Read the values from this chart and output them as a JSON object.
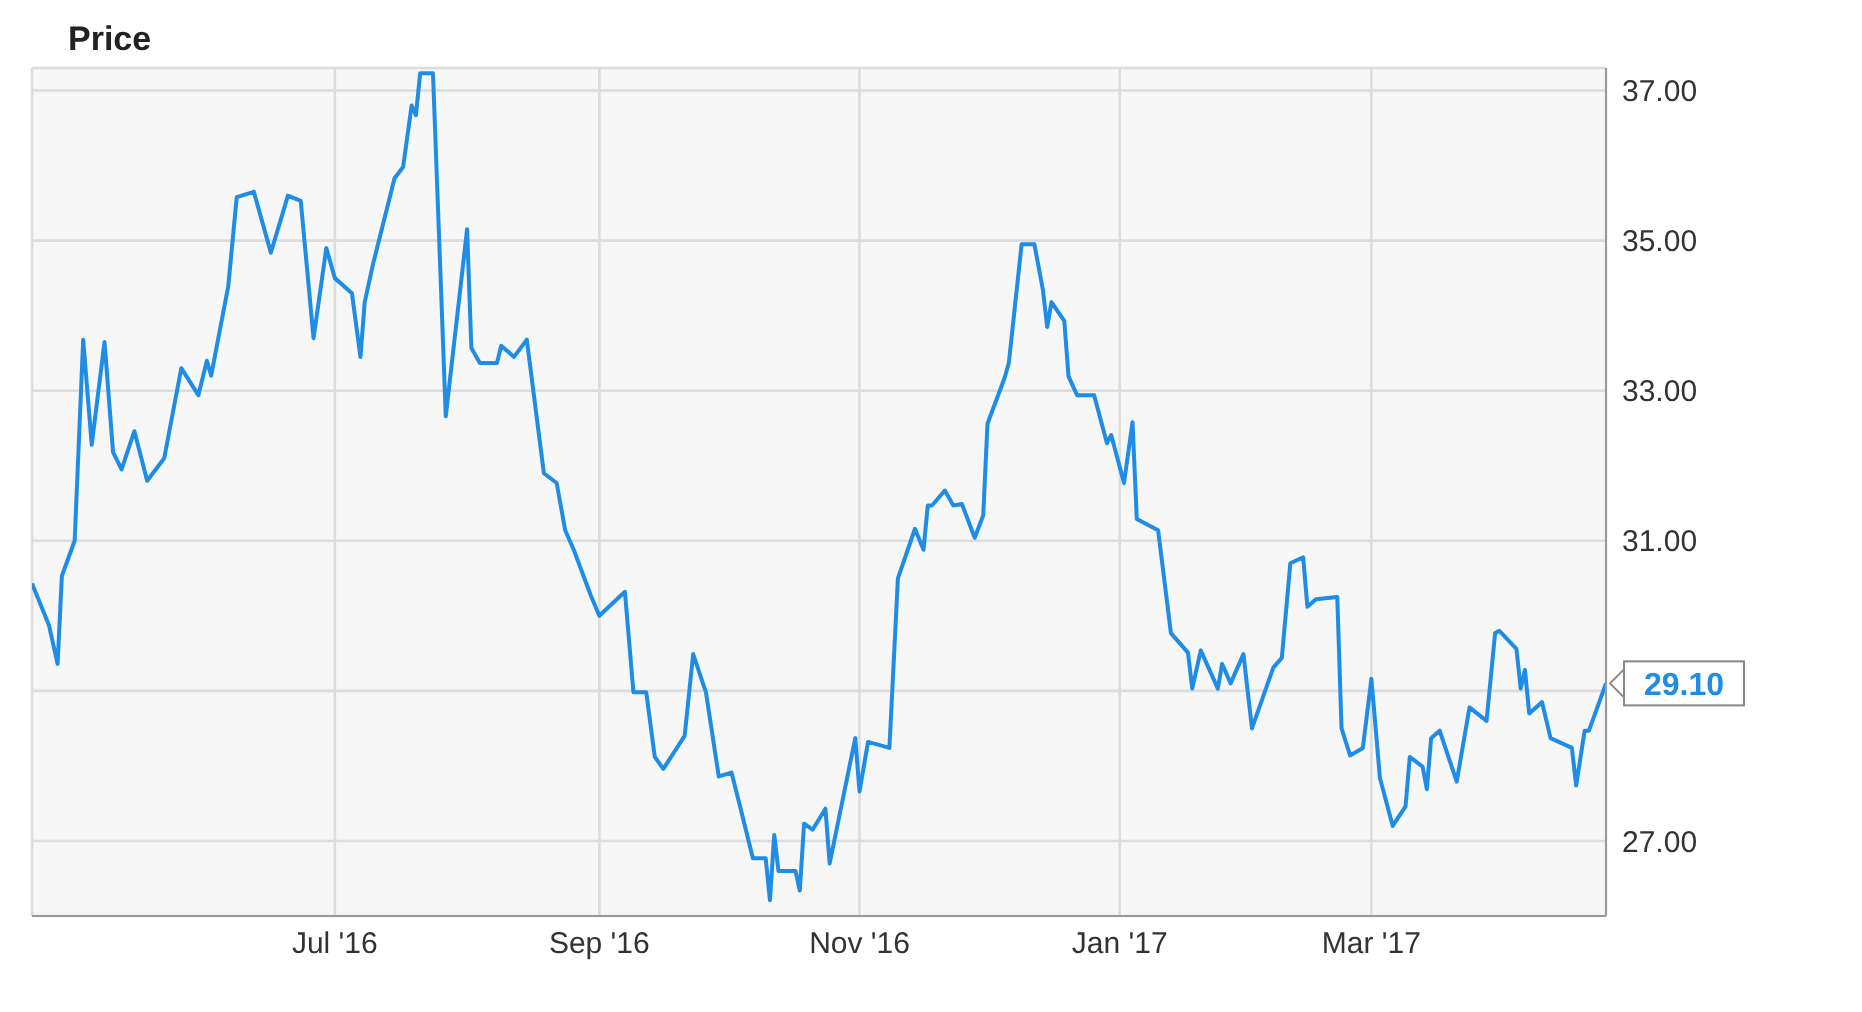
{
  "chart_data": {
    "type": "line",
    "title": "Price",
    "x": [
      "2016-04-21",
      "2016-04-25",
      "2016-04-27",
      "2016-04-28",
      "2016-05-01",
      "2016-05-03",
      "2016-05-05",
      "2016-05-08",
      "2016-05-10",
      "2016-05-12",
      "2016-05-15",
      "2016-05-18",
      "2016-05-22",
      "2016-05-26",
      "2016-05-30",
      "2016-06-01",
      "2016-06-02",
      "2016-06-06",
      "2016-06-08",
      "2016-06-12",
      "2016-06-16",
      "2016-06-20",
      "2016-06-23",
      "2016-06-26",
      "2016-06-29",
      "2016-07-01",
      "2016-07-05",
      "2016-07-07",
      "2016-07-08",
      "2016-07-10",
      "2016-07-15",
      "2016-07-17",
      "2016-07-19",
      "2016-07-20",
      "2016-07-21",
      "2016-07-24",
      "2016-07-27",
      "2016-08-01",
      "2016-08-02",
      "2016-08-04",
      "2016-08-08",
      "2016-08-09",
      "2016-08-12",
      "2016-08-15",
      "2016-08-19",
      "2016-08-22",
      "2016-08-24",
      "2016-08-26",
      "2016-08-30",
      "2016-09-01",
      "2016-09-07",
      "2016-09-09",
      "2016-09-12",
      "2016-09-14",
      "2016-09-16",
      "2016-09-21",
      "2016-09-23",
      "2016-09-26",
      "2016-09-29",
      "2016-10-02",
      "2016-10-04",
      "2016-10-07",
      "2016-10-10",
      "2016-10-11",
      "2016-10-12",
      "2016-10-13",
      "2016-10-17",
      "2016-10-18",
      "2016-10-19",
      "2016-10-21",
      "2016-10-24",
      "2016-10-25",
      "2016-10-31",
      "2016-11-01",
      "2016-11-03",
      "2016-11-08",
      "2016-11-10",
      "2016-11-14",
      "2016-11-16",
      "2016-11-17",
      "2016-11-18",
      "2016-11-21",
      "2016-11-23",
      "2016-11-25",
      "2016-11-28",
      "2016-11-30",
      "2016-12-01",
      "2016-12-05",
      "2016-12-06",
      "2016-12-09",
      "2016-12-12",
      "2016-12-14",
      "2016-12-15",
      "2016-12-16",
      "2016-12-19",
      "2016-12-20",
      "2016-12-22",
      "2016-12-26",
      "2016-12-29",
      "2016-12-30",
      "2017-01-02",
      "2017-01-04",
      "2017-01-05",
      "2017-01-10",
      "2017-01-13",
      "2017-01-17",
      "2017-01-18",
      "2017-01-20",
      "2017-01-24",
      "2017-01-25",
      "2017-01-27",
      "2017-01-30",
      "2017-02-01",
      "2017-02-06",
      "2017-02-08",
      "2017-02-10",
      "2017-02-13",
      "2017-02-14",
      "2017-02-16",
      "2017-02-21",
      "2017-02-22",
      "2017-02-24",
      "2017-02-27",
      "2017-03-01",
      "2017-03-03",
      "2017-03-06",
      "2017-03-09",
      "2017-03-10",
      "2017-03-13",
      "2017-03-14",
      "2017-03-15",
      "2017-03-17",
      "2017-03-21",
      "2017-03-24",
      "2017-03-28",
      "2017-03-30",
      "2017-03-31",
      "2017-04-04",
      "2017-04-05",
      "2017-04-06",
      "2017-04-07",
      "2017-04-10",
      "2017-04-12",
      "2017-04-17",
      "2017-04-18",
      "2017-04-20",
      "2017-04-21",
      "2017-04-25"
    ],
    "series": [
      {
        "color": "#1f8ce6",
        "values": [
          30.43,
          29.87,
          29.36,
          30.53,
          31.0,
          33.68,
          32.28,
          33.65,
          32.18,
          31.95,
          32.46,
          31.8,
          32.1,
          33.3,
          32.94,
          33.4,
          33.2,
          34.39,
          35.58,
          35.65,
          34.84,
          35.6,
          35.53,
          33.7,
          34.9,
          34.5,
          34.3,
          33.45,
          34.18,
          34.7,
          35.83,
          35.98,
          36.8,
          36.67,
          37.23,
          37.23,
          32.66,
          35.15,
          33.57,
          33.37,
          33.37,
          33.6,
          33.45,
          33.68,
          31.9,
          31.77,
          31.14,
          30.88,
          30.27,
          30.0,
          30.32,
          28.98,
          28.98,
          28.12,
          27.96,
          28.4,
          29.49,
          28.98,
          27.86,
          27.91,
          27.46,
          26.77,
          26.77,
          26.21,
          27.08,
          26.6,
          26.6,
          26.34,
          27.23,
          27.15,
          27.43,
          26.7,
          28.37,
          27.66,
          28.32,
          28.24,
          30.5,
          31.16,
          30.88,
          31.47,
          31.47,
          31.67,
          31.47,
          31.49,
          31.04,
          31.34,
          32.56,
          33.17,
          33.37,
          34.95,
          34.95,
          34.34,
          33.85,
          34.18,
          33.93,
          33.19,
          32.94,
          32.94,
          32.3,
          32.41,
          31.77,
          32.58,
          31.29,
          31.14,
          29.77,
          29.51,
          29.03,
          29.54,
          29.03,
          29.36,
          29.1,
          29.49,
          28.5,
          29.31,
          29.44,
          30.7,
          30.78,
          30.12,
          30.22,
          30.25,
          28.5,
          28.14,
          28.24,
          29.16,
          27.84,
          27.2,
          27.46,
          28.12,
          27.99,
          27.69,
          28.37,
          28.47,
          27.79,
          28.78,
          28.6,
          29.77,
          29.8,
          29.56,
          29.03,
          29.28,
          28.7,
          28.85,
          28.37,
          28.24,
          27.74,
          28.47,
          28.47,
          29.1
        ]
      }
    ],
    "xlim": [
      "2016-04-21",
      "2017-04-25"
    ],
    "xticks": [
      {
        "value": "2016-07-01",
        "label": "Jul '16"
      },
      {
        "value": "2016-09-01",
        "label": "Sep '16"
      },
      {
        "value": "2016-11-01",
        "label": "Nov '16"
      },
      {
        "value": "2017-01-01",
        "label": "Jan '17"
      },
      {
        "value": "2017-03-01",
        "label": "Mar '17"
      }
    ],
    "ylim": [
      26,
      37.3
    ],
    "yticks": [
      {
        "value": 27,
        "label": "27.00"
      },
      {
        "value": 29,
        "label": null
      },
      {
        "value": 31,
        "label": "31.00"
      },
      {
        "value": 33,
        "label": "33.00"
      },
      {
        "value": 35,
        "label": "35.00"
      },
      {
        "value": 37,
        "label": "37.00"
      }
    ],
    "annotations": [
      {
        "text": "29.10",
        "x": "2017-04-25",
        "y": 29.1
      }
    ],
    "grid": true,
    "marker": "none",
    "line_style": "solid"
  }
}
